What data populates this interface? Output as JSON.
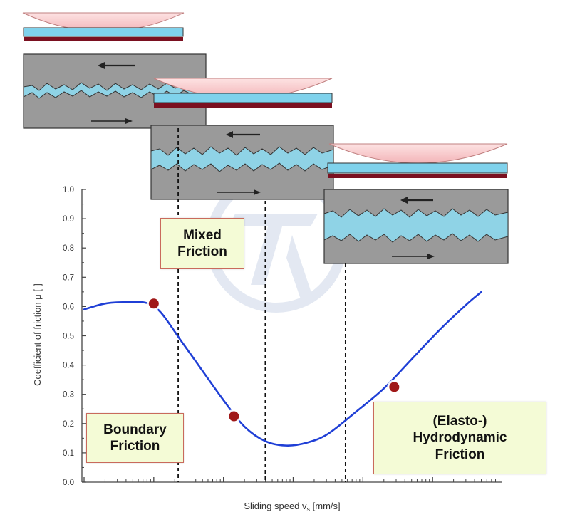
{
  "chart_data": {
    "type": "line",
    "title": "",
    "xlabel": "Sliding speed v",
    "xlabel_subscript": "s",
    "xlabel_unit": " [mm/s]",
    "ylabel": "Coefficient of friction μ [-]",
    "ylim": [
      0.0,
      1.0
    ],
    "yticks": [
      "0.0",
      "0.1",
      "0.2",
      "0.3",
      "0.4",
      "0.5",
      "0.6",
      "0.7",
      "0.8",
      "0.9",
      "1.0"
    ],
    "x_scale": "log, unlabeled",
    "grid": false,
    "series": [
      {
        "color": "#1f3fd6",
        "points": [
          {
            "x": 0.0,
            "y": 0.59
          },
          {
            "x": 0.3,
            "y": 0.61
          },
          {
            "x": 0.6,
            "y": 0.615
          },
          {
            "x": 0.9,
            "y": 0.612
          },
          {
            "x": 1.1,
            "y": 0.58
          },
          {
            "x": 1.4,
            "y": 0.48
          },
          {
            "x": 1.7,
            "y": 0.38
          },
          {
            "x": 2.0,
            "y": 0.28
          },
          {
            "x": 2.3,
            "y": 0.19
          },
          {
            "x": 2.6,
            "y": 0.14
          },
          {
            "x": 2.9,
            "y": 0.125
          },
          {
            "x": 3.2,
            "y": 0.135
          },
          {
            "x": 3.5,
            "y": 0.165
          },
          {
            "x": 3.9,
            "y": 0.24
          },
          {
            "x": 4.3,
            "y": 0.32
          },
          {
            "x": 4.7,
            "y": 0.42
          },
          {
            "x": 5.1,
            "y": 0.52
          },
          {
            "x": 5.5,
            "y": 0.61
          },
          {
            "x": 5.7,
            "y": 0.65
          }
        ]
      }
    ],
    "markers": [
      {
        "x": 1.0,
        "y": 0.61,
        "color": "#a01818"
      },
      {
        "x": 2.15,
        "y": 0.225,
        "color": "#a01818"
      },
      {
        "x": 4.45,
        "y": 0.325,
        "color": "#a01818"
      }
    ],
    "region_boundaries_x": [
      1.35,
      2.6,
      3.75
    ],
    "regions": [
      {
        "label": "Boundary\nFriction"
      },
      {
        "label": "Mixed\nFriction"
      },
      {
        "label": "(Elasto-)\nHydrodynamic\nFriction"
      }
    ],
    "colors": {
      "curve": "#1f3fd6",
      "marker": "#a01818",
      "region_fill": "#f4fbd6",
      "region_border": "#c96a5c",
      "lubricant": "#8fd3e6",
      "surface": "#9a9a9a",
      "lens": "#f7c9c9"
    }
  }
}
